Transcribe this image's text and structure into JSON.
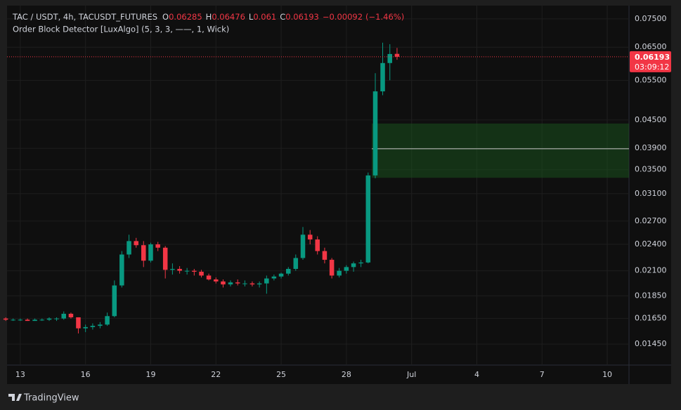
{
  "chart_data": {
    "type": "candlestick",
    "title": "TAC / USDT, 4h, TACUSDT_FUTURES",
    "indicator": "Order Block Detector [LuxAlgo] (5, 3, 3, ——, 1, Wick)",
    "ohlc_labels": [
      "O",
      "H",
      "L",
      "C"
    ],
    "change": "−0.00092",
    "change_pct": "(−1.46%)",
    "countdown": "03:09:12",
    "brand": "TradingView",
    "log_scale": true,
    "grid": true,
    "up_color": "#089981",
    "down_color": "#f23645",
    "x": [
      12.33,
      12.67,
      13,
      13.33,
      13.67,
      14,
      14.33,
      14.67,
      15,
      15.33,
      15.67,
      16,
      16.33,
      16.67,
      17,
      17.33,
      17.67,
      18,
      18.33,
      18.67,
      19,
      19.33,
      19.67,
      20,
      20.33,
      20.67,
      21,
      21.33,
      21.67,
      22,
      22.33,
      22.67,
      23,
      23.33,
      23.67,
      24,
      24.33,
      24.67,
      25,
      25.33,
      25.67,
      26,
      26.33,
      26.67,
      27,
      27.33,
      27.67,
      28,
      28.33,
      28.67,
      29,
      29.33,
      29.67,
      30,
      30.33
    ],
    "open": [
      0.0165,
      0.0164,
      0.0164,
      0.0164,
      0.0163,
      0.0164,
      0.0164,
      0.0165,
      0.0165,
      0.0169,
      0.0166,
      0.0157,
      0.0158,
      0.0159,
      0.016,
      0.0167,
      0.0195,
      0.0228,
      0.0244,
      0.0239,
      0.0221,
      0.024,
      0.0236,
      0.0211,
      0.0212,
      0.021,
      0.021,
      0.0209,
      0.0205,
      0.0201,
      0.0199,
      0.0196,
      0.0198,
      0.0197,
      0.0197,
      0.0196,
      0.0197,
      0.0202,
      0.0204,
      0.0207,
      0.0212,
      0.0224,
      0.0252,
      0.0246,
      0.0232,
      0.0222,
      0.0205,
      0.021,
      0.0214,
      0.0218,
      0.0219,
      0.034,
      0.052,
      0.06,
      0.06285
    ],
    "high": [
      0.0166,
      0.0165,
      0.0165,
      0.0165,
      0.0165,
      0.0165,
      0.0166,
      0.0166,
      0.0171,
      0.017,
      0.0166,
      0.016,
      0.0161,
      0.0162,
      0.017,
      0.02,
      0.0232,
      0.0252,
      0.0248,
      0.0244,
      0.0242,
      0.0243,
      0.0238,
      0.0218,
      0.0215,
      0.0213,
      0.0212,
      0.0211,
      0.0207,
      0.0203,
      0.0201,
      0.02,
      0.0201,
      0.02,
      0.0199,
      0.0199,
      0.0205,
      0.0206,
      0.0208,
      0.0214,
      0.0228,
      0.0262,
      0.0258,
      0.025,
      0.0236,
      0.0224,
      0.0213,
      0.0216,
      0.022,
      0.0222,
      0.0345,
      0.057,
      0.0665,
      0.066,
      0.06476
    ],
    "low": [
      0.0163,
      0.0163,
      0.0163,
      0.0163,
      0.0163,
      0.0163,
      0.0163,
      0.0163,
      0.0164,
      0.0165,
      0.0153,
      0.0154,
      0.0156,
      0.0157,
      0.0159,
      0.0166,
      0.0193,
      0.0224,
      0.0236,
      0.0214,
      0.0219,
      0.0232,
      0.0202,
      0.0206,
      0.0207,
      0.0206,
      0.0205,
      0.0203,
      0.02,
      0.0197,
      0.0193,
      0.0194,
      0.0195,
      0.0194,
      0.0194,
      0.0193,
      0.0187,
      0.02,
      0.0202,
      0.0205,
      0.021,
      0.0222,
      0.024,
      0.0228,
      0.0218,
      0.0202,
      0.0203,
      0.0207,
      0.0209,
      0.0214,
      0.0218,
      0.0335,
      0.051,
      0.055,
      0.061
    ],
    "close": [
      0.0164,
      0.0164,
      0.0164,
      0.0163,
      0.0164,
      0.0164,
      0.0165,
      0.0165,
      0.0169,
      0.0166,
      0.0157,
      0.0158,
      0.0159,
      0.016,
      0.0167,
      0.0195,
      0.0228,
      0.0244,
      0.0239,
      0.0221,
      0.024,
      0.0236,
      0.0211,
      0.0212,
      0.021,
      0.021,
      0.0209,
      0.0205,
      0.0201,
      0.0199,
      0.0196,
      0.0198,
      0.0197,
      0.0197,
      0.0196,
      0.0197,
      0.0202,
      0.0204,
      0.0207,
      0.0212,
      0.0224,
      0.0252,
      0.0246,
      0.0232,
      0.0222,
      0.0205,
      0.021,
      0.0214,
      0.0218,
      0.0219,
      0.034,
      0.052,
      0.06,
      0.0628,
      0.06193
    ],
    "order_block": {
      "x": 29.17,
      "top": 0.0442,
      "bottom": 0.0336,
      "mid": 0.0389,
      "color": "#1b5e20"
    },
    "xlim": [
      12.39,
      41.0
    ],
    "ylim": [
      0.01304,
      0.0802
    ],
    "xticks": [
      13,
      16,
      19,
      22,
      25,
      28,
      {
        "value": 31,
        "label": "Jul"
      },
      {
        "value": 34,
        "label": "4"
      },
      {
        "value": 37,
        "label": "7"
      },
      {
        "value": 40,
        "label": "10"
      }
    ],
    "yticks": [
      {
        "value": 0.0145,
        "label": "0.01450"
      },
      {
        "value": 0.0165,
        "label": "0.01650"
      },
      {
        "value": 0.0185,
        "label": "0.01850"
      },
      {
        "value": 0.021,
        "label": "0.02100"
      },
      {
        "value": 0.024,
        "label": "0.02400"
      },
      {
        "value": 0.027,
        "label": "0.02700"
      },
      {
        "value": 0.031,
        "label": "0.03100"
      },
      {
        "value": 0.035,
        "label": "0.03500"
      },
      {
        "value": 0.039,
        "label": "0.03900"
      },
      {
        "value": 0.045,
        "label": "0.04500"
      },
      {
        "value": 0.055,
        "label": "0.05500"
      },
      {
        "value": 0.065,
        "label": "0.06500"
      },
      {
        "value": 0.075,
        "label": "0.07500"
      }
    ]
  }
}
